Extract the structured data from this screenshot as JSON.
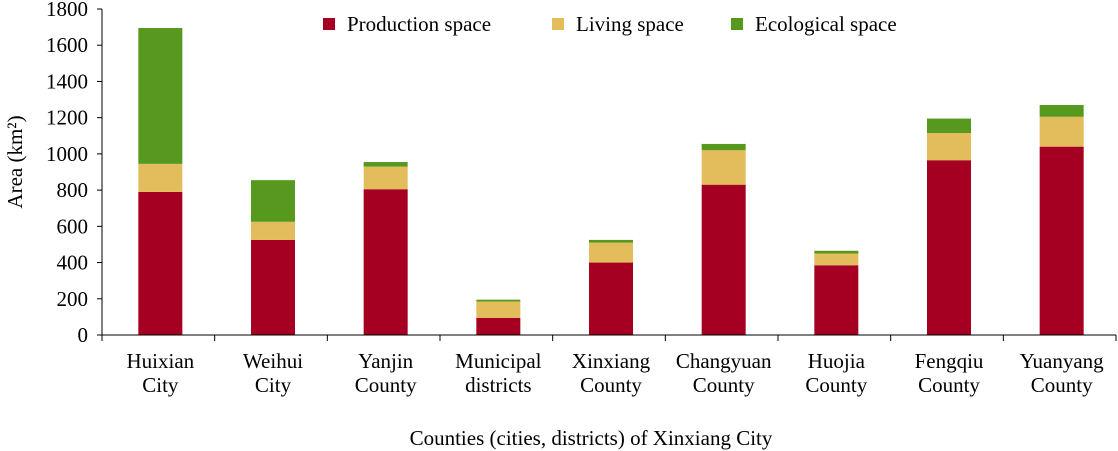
{
  "chart_data": {
    "type": "bar",
    "stacked": true,
    "title": "",
    "xlabel": "Counties (cities, districts) of Xinxiang City",
    "ylabel": "Area (km²)",
    "ylim": [
      0,
      1800
    ],
    "yticks": [
      0,
      200,
      400,
      600,
      800,
      1000,
      1200,
      1400,
      1600,
      1800
    ],
    "grid": false,
    "legend_position": "top",
    "categories": [
      [
        "Huixian",
        "City"
      ],
      [
        "Weihui",
        "City"
      ],
      [
        "Yanjin",
        "County"
      ],
      [
        "Municipal",
        "districts"
      ],
      [
        "Xinxiang",
        "County"
      ],
      [
        "Changyuan",
        "County"
      ],
      [
        "Huojia",
        "County"
      ],
      [
        "Fengqiu",
        "County"
      ],
      [
        "Yuanyang",
        "County"
      ]
    ],
    "series": [
      {
        "name": "Production space",
        "color": "#a50021",
        "values": [
          790,
          525,
          805,
          95,
          400,
          830,
          385,
          965,
          1040
        ]
      },
      {
        "name": "Living space",
        "color": "#e3bd5b",
        "values": [
          155,
          100,
          125,
          90,
          110,
          190,
          65,
          150,
          165
        ]
      },
      {
        "name": "Ecological space",
        "color": "#57991f",
        "values": [
          750,
          230,
          25,
          10,
          15,
          35,
          15,
          80,
          65
        ]
      }
    ]
  }
}
